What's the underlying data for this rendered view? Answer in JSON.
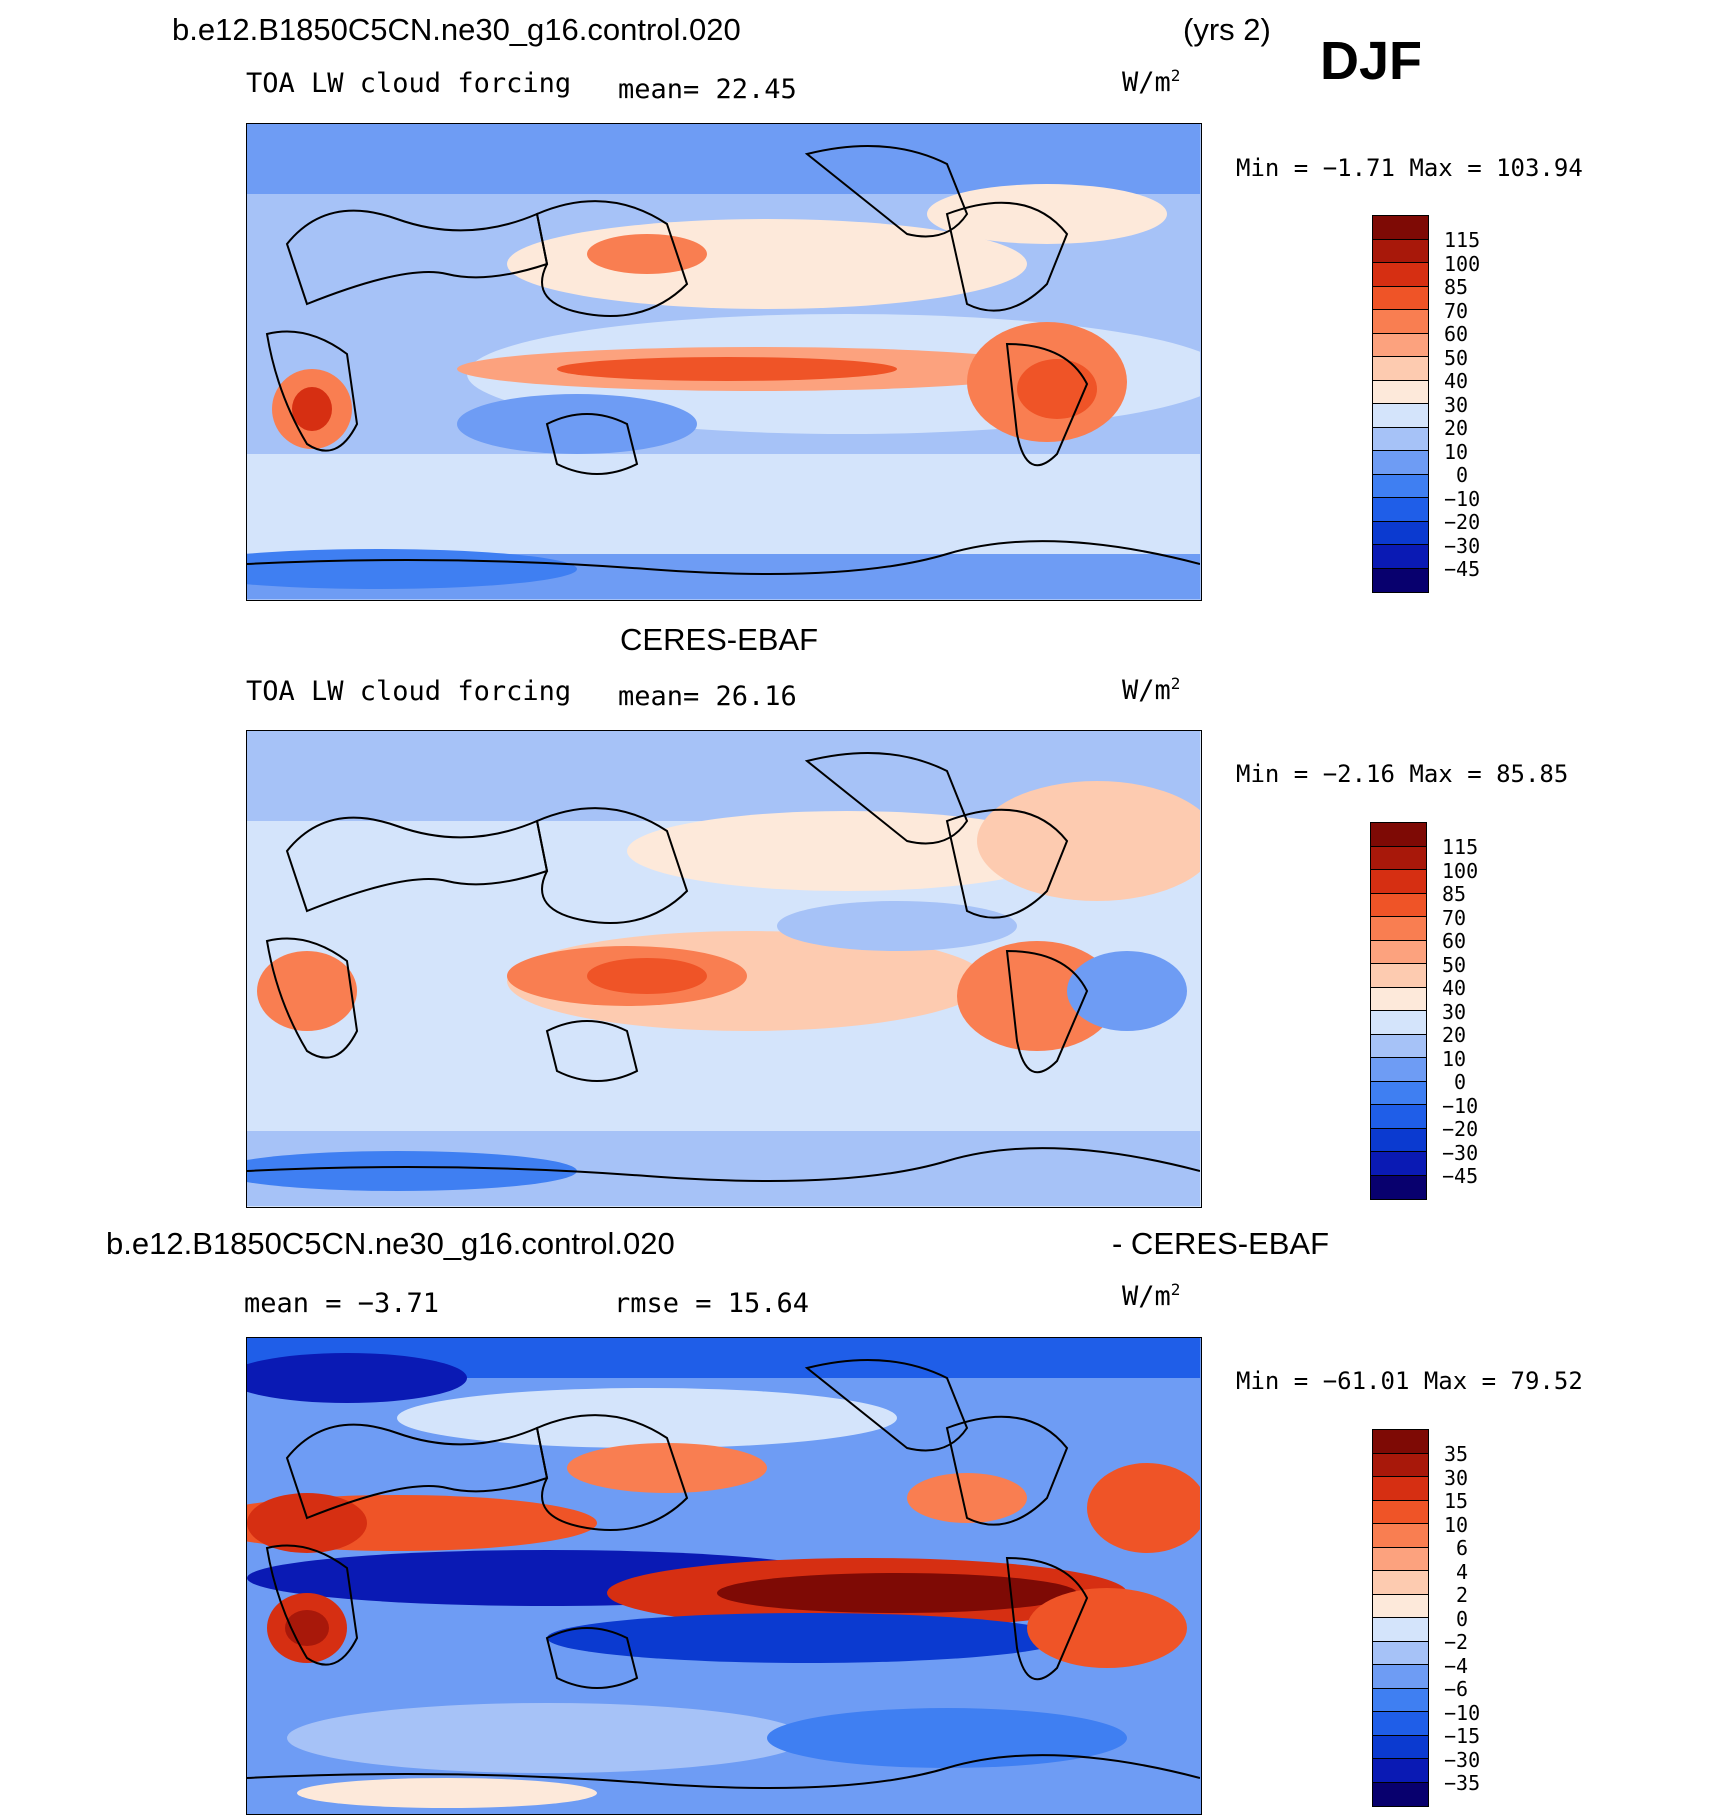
{
  "figure": {
    "case_title": "b.e12.B1850C5CN.ne30_g16.control.020",
    "years_label": "(yrs 2)",
    "season": "DJF"
  },
  "colors": {
    "abs_scale": [
      "#08006e",
      "#0a1ab4",
      "#0b3ad0",
      "#1f5ee8",
      "#3f7ff2",
      "#6e9cf4",
      "#a6c2f7",
      "#d4e4fb",
      "#fde9da",
      "#fdcbb0",
      "#fca27e",
      "#f97e51",
      "#ef5427",
      "#d62f12",
      "#a8180a",
      "#7e0a05"
    ],
    "diff_scale": [
      "#08006e",
      "#0a1ab4",
      "#0b3ad0",
      "#1f5ee8",
      "#3f7ff2",
      "#6e9cf4",
      "#a6c2f7",
      "#d4e4fb",
      "#fde9da",
      "#fdcbb0",
      "#fca27e",
      "#f97e51",
      "#ef5427",
      "#d62f12",
      "#a8180a",
      "#7e0a05"
    ]
  },
  "panels": {
    "model": {
      "variable": "TOA LW cloud forcing",
      "mean_text": "mean=  22.45",
      "units_base": "W/m",
      "units_exp": "2",
      "minmax": "Min =  −1.71 Max = 103.94"
    },
    "obs": {
      "dataset": "CERES-EBAF",
      "variable": "TOA LW cloud forcing",
      "mean_text": "mean=  26.16",
      "units_base": "W/m",
      "units_exp": "2",
      "minmax": "Min =  −2.16 Max =  85.85"
    },
    "diff": {
      "title_left": "b.e12.B1850C5CN.ne30_g16.control.020",
      "title_right": "- CERES-EBAF",
      "mean_text": "mean =  −3.71",
      "rmse_text": "rmse =  15.64",
      "units_base": "W/m",
      "units_exp": "2",
      "minmax": "Min = −61.01 Max =  79.52"
    }
  },
  "chart_data": [
    {
      "type": "heatmap",
      "title": "b.e12.B1850C5CN.ne30_g16.control.020",
      "subtitle": "TOA LW cloud forcing",
      "mean": 22.45,
      "min": -1.71,
      "max": 103.94,
      "units": "W/m2",
      "levels": [
        "115",
        "100",
        "85",
        "70",
        "60",
        "50",
        "40",
        "30",
        "20",
        "10",
        "0",
        "−10",
        "−20",
        "−30",
        "−45"
      ]
    },
    {
      "type": "heatmap",
      "title": "CERES-EBAF",
      "subtitle": "TOA LW cloud forcing",
      "mean": 26.16,
      "min": -2.16,
      "max": 85.85,
      "units": "W/m2",
      "levels": [
        "115",
        "100",
        "85",
        "70",
        "60",
        "50",
        "40",
        "30",
        "20",
        "10",
        "0",
        "−10",
        "−20",
        "−30",
        "−45"
      ]
    },
    {
      "type": "heatmap",
      "title": "b.e12.B1850C5CN.ne30_g16.control.020 - CERES-EBAF",
      "mean": -3.71,
      "rmse": 15.64,
      "min": -61.01,
      "max": 79.52,
      "units": "W/m2",
      "levels": [
        "35",
        "30",
        "15",
        "10",
        "6",
        "4",
        "2",
        "0",
        "−2",
        "−4",
        "−6",
        "−10",
        "−15",
        "−30",
        "−35"
      ]
    }
  ]
}
